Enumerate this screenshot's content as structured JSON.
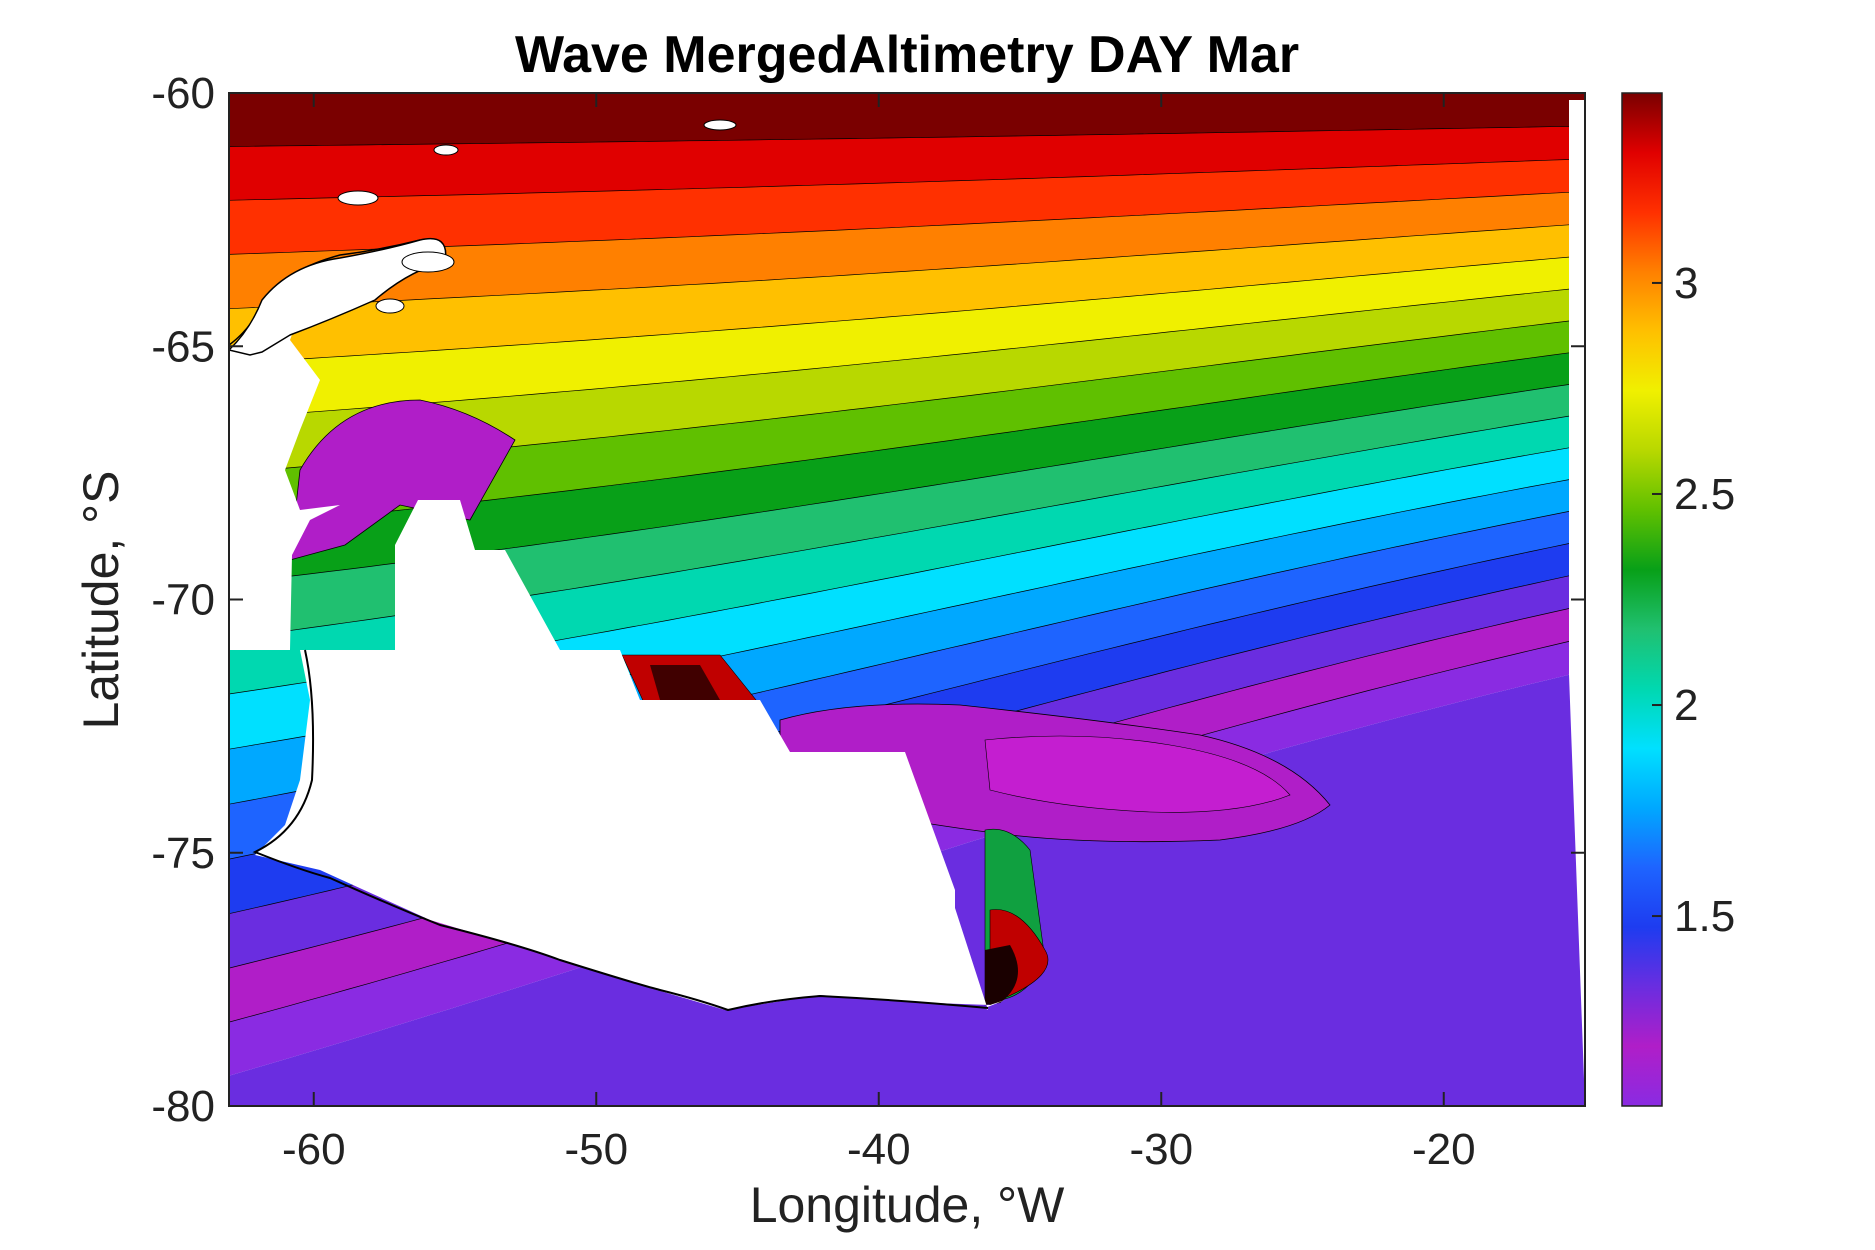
{
  "chart_data": {
    "type": "heatmap",
    "title": "Wave MergedAltimetry DAY Mar",
    "xlabel": "Longitude, °W",
    "ylabel": "Latitude, °S",
    "xlim": [
      -63,
      -15
    ],
    "ylim": [
      -80,
      -60
    ],
    "xticks": [
      -60,
      -50,
      -40,
      -30,
      -20
    ],
    "yticks": [
      -60,
      -65,
      -70,
      -75,
      -80
    ],
    "colorbar": {
      "range": [
        1.05,
        3.45
      ],
      "ticks": [
        1.5,
        2,
        2.5,
        3
      ],
      "colors": [
        "#8a2be2",
        "#b01ec8",
        "#6a2de0",
        "#1e3cf0",
        "#1e64ff",
        "#00a8ff",
        "#00e0ff",
        "#00d8b0",
        "#20c070",
        "#08a018",
        "#60c000",
        "#b8d800",
        "#f0f000",
        "#ffc000",
        "#ff8000",
        "#ff3000",
        "#e00000",
        "#7a0000"
      ]
    },
    "field_summary": {
      "north_edge_max": 3.4,
      "south_coast_min": 1.2,
      "gradient": "waves increase from the Antarctic coast (south) to the open ocean (north)"
    }
  }
}
